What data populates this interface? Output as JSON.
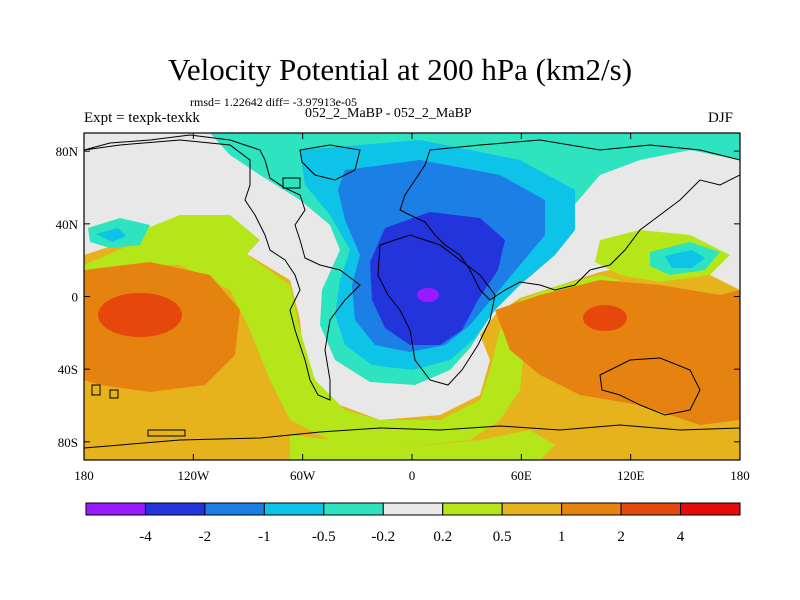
{
  "title": "Velocity Potential at 200 hPa (km2/s)",
  "stats": "rmsd= 1.22642 diff= -3.97913e-05",
  "left_label": "Expt = texpk-texkk",
  "center_label": "052_2_MaBP - 052_2_MaBP",
  "right_label": "DJF",
  "chart_data": {
    "type": "heatmap",
    "description_type": "filled contour map",
    "title": "Velocity Potential at 200 hPa (km2/s)",
    "x_ticks": [
      "180",
      "120W",
      "60W",
      "0",
      "60E",
      "120E",
      "180"
    ],
    "x_tick_values": [
      -180,
      -120,
      -60,
      0,
      60,
      120,
      180
    ],
    "y_ticks": [
      "80N",
      "40N",
      "0",
      "40S",
      "80S"
    ],
    "y_tick_values": [
      80,
      40,
      0,
      -40,
      -80
    ],
    "xlim": [
      -180,
      180
    ],
    "ylim": [
      -90,
      90
    ],
    "colorbar": {
      "levels": [
        "-4",
        "-2",
        "-1",
        "-0.5",
        "-0.2",
        "0.2",
        "0.5",
        "1",
        "2",
        "4"
      ],
      "colors": [
        "#9a1aff",
        "#2434dd",
        "#1b7fe6",
        "#0ec3e8",
        "#2ee3bf",
        "#e8e8e8",
        "#b4e61a",
        "#e6b31c",
        "#e6820f",
        "#e6470a",
        "#e60a0a"
      ]
    },
    "fields": [
      {
        "level": "-4",
        "note": "weak minimum near 10E, equator"
      },
      {
        "level": "-2",
        "note": "core of negative anomaly over Africa/Atlantic, 20W-50E"
      },
      {
        "level": "2",
        "note": "positive maxima over central Pacific (~150W,10S) and Indian/Australia (~110E,15S)"
      }
    ]
  }
}
